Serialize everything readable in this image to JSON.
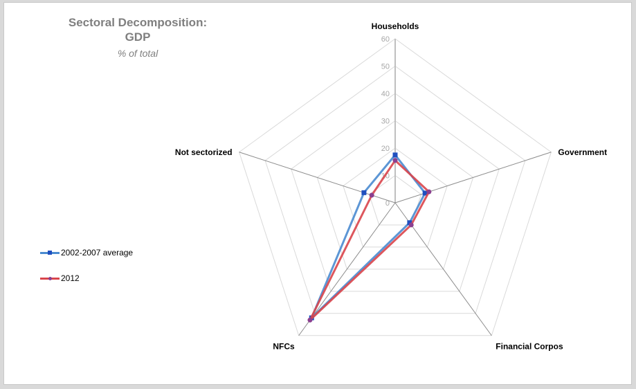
{
  "chart_data": {
    "type": "radar",
    "title": "Sectoral Decomposition: GDP",
    "title_lines": [
      "Sectoral Decomposition:",
      "GDP"
    ],
    "subtitle": "% of total",
    "categories": [
      "Households",
      "Government",
      "Financial Corpos",
      "NFCs",
      "Not sectorized"
    ],
    "radial_ticks": [
      0,
      10,
      20,
      30,
      40,
      50,
      60
    ],
    "rlim": [
      0,
      60
    ],
    "grid": true,
    "legend_position": "left",
    "series": [
      {
        "name": "2002-2007 average",
        "color": "#4a8bd0",
        "marker": "square",
        "marker_color": "#1f4fbf",
        "values": [
          17.5,
          11.5,
          9,
          52,
          12
        ]
      },
      {
        "name": "2012",
        "color": "#d9454b",
        "marker": "circle",
        "marker_color": "#8b3f8f",
        "values": [
          15.5,
          13,
          10,
          53,
          9
        ]
      }
    ]
  },
  "legend": {
    "items": [
      {
        "label": "2002-2007 average"
      },
      {
        "label": "2012"
      }
    ]
  }
}
